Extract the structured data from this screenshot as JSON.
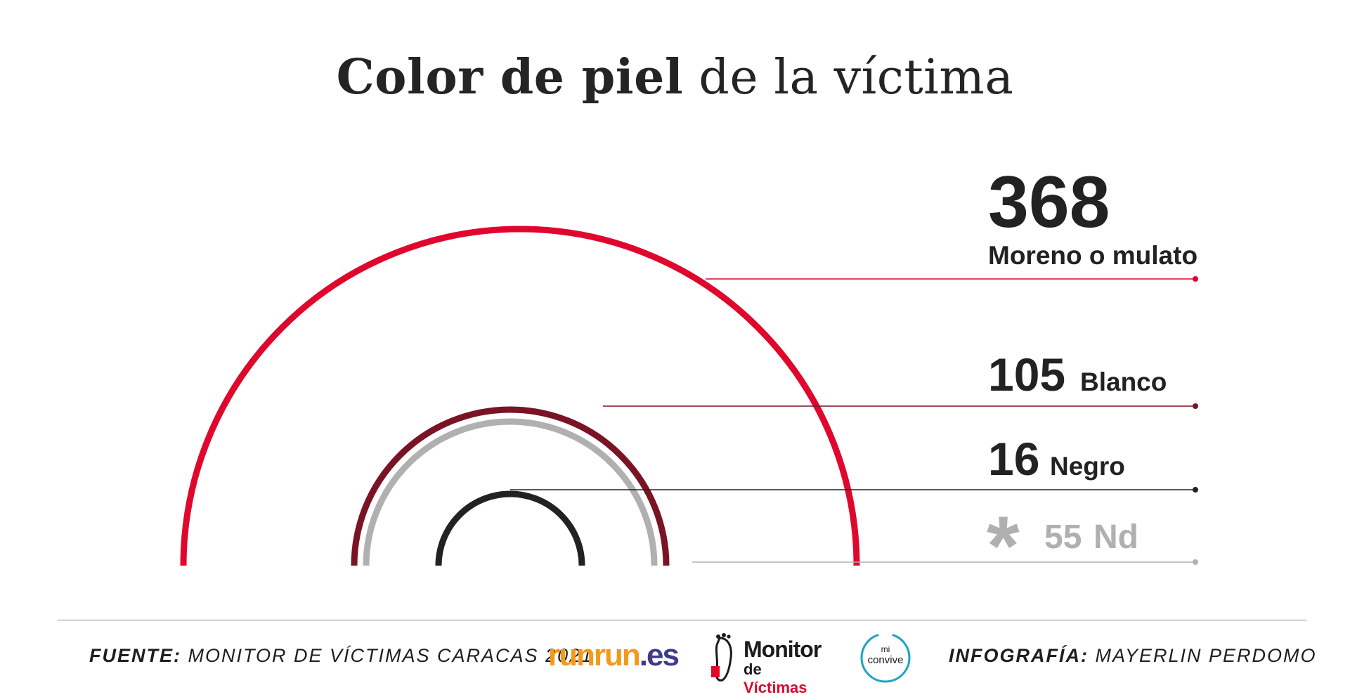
{
  "title": {
    "bold": "Color de piel",
    "normal": " de la víctima"
  },
  "chart_data": {
    "type": "semicircle-rings",
    "title": "Color de piel de la víctima",
    "series": [
      {
        "name": "Moreno o mulato",
        "value": 368,
        "label": "368",
        "color": "#e0072d"
      },
      {
        "name": "Blanco",
        "value": 105,
        "label": "105",
        "color": "#7a1425"
      },
      {
        "name": "Negro",
        "value": 16,
        "label": "16",
        "color": "#222222"
      },
      {
        "name": "Nd",
        "value": 55,
        "label": "55",
        "prefix": "*",
        "color": "#b0b0b0"
      }
    ]
  },
  "footer": {
    "source_key": "FUENTE:",
    "source_val": " MONITOR DE VÍCTIMAS CARACAS 2021",
    "credit_key": "INFOGRAFÍA:",
    "credit_val": " MAYERLIN PERDOMO"
  },
  "logos": {
    "runrun_a": "runrun",
    "runrun_b": ".es",
    "monitor_a": "Monitor",
    "monitor_b1": "de ",
    "monitor_b2": "Víctimas",
    "convive_a": "mi",
    "convive_b": "convive"
  }
}
